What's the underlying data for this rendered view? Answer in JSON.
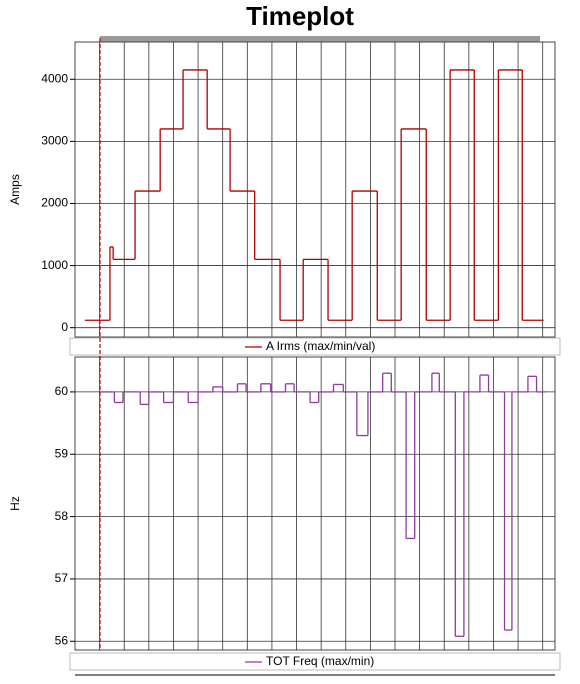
{
  "chart_data": [
    {
      "type": "line",
      "title": "Timeplot",
      "step": "post",
      "ylabel": "Amps",
      "xlim": [
        0,
        19.5
      ],
      "xticks": [
        1,
        2,
        3,
        4,
        5,
        6,
        7,
        8,
        9,
        10,
        11,
        12,
        13,
        14,
        15,
        16,
        17,
        18,
        19
      ],
      "ylim": [
        -150,
        4600
      ],
      "yticks": [
        0,
        1000,
        2000,
        3000,
        4000
      ],
      "grid": true,
      "series": [
        {
          "name": "A Irms (max/min/val)",
          "color": "#b00000",
          "x": [
            0.4,
            1.42,
            1.55,
            2.44,
            3.46,
            4.39,
            5.37,
            6.3,
            7.3,
            8.33,
            9.27,
            10.28,
            11.26,
            12.28,
            13.25,
            14.27,
            15.24,
            16.22,
            17.2,
            18.17,
            19.02
          ],
          "values": [
            120,
            1300,
            1100,
            2200,
            3200,
            4150,
            3200,
            2200,
            1100,
            120,
            1100,
            120,
            2200,
            120,
            3200,
            120,
            4150,
            120,
            4150,
            120,
            120
          ]
        }
      ]
    },
    {
      "type": "line",
      "step": "post",
      "ylabel": "Hz",
      "xlim": [
        0,
        19.5
      ],
      "xticks": [
        1,
        2,
        3,
        4,
        5,
        6,
        7,
        8,
        9,
        10,
        11,
        12,
        13,
        14,
        15,
        16,
        17,
        18,
        19
      ],
      "ylim": [
        55.86,
        60.56
      ],
      "yticks": [
        56,
        57,
        58,
        59,
        60
      ],
      "grid": true,
      "series": [
        {
          "name": "TOT Freq (max/min)",
          "color": "#8e3a9e",
          "x": [
            1.0,
            1.6,
            1.95,
            2.65,
            3.0,
            3.6,
            4.0,
            4.6,
            5.0,
            5.6,
            6.0,
            6.6,
            6.95,
            7.55,
            7.95,
            8.55,
            8.9,
            9.55,
            9.9,
            10.5,
            10.9,
            11.45,
            11.9,
            12.5,
            12.85,
            13.45,
            13.8,
            14.5,
            14.8,
            15.45,
            15.8,
            16.45,
            16.8,
            17.45,
            17.75,
            18.4,
            18.75,
            19.1
          ],
          "values": [
            60,
            59.83,
            60,
            59.8,
            60,
            59.83,
            60,
            59.83,
            60,
            60.08,
            60,
            60.13,
            60,
            60.13,
            60,
            60.13,
            60,
            59.83,
            60,
            60.12,
            60,
            59.3,
            60,
            60.3,
            60,
            57.65,
            60,
            60.3,
            60,
            56.08,
            60,
            60.27,
            60,
            56.18,
            60,
            60.25,
            60,
            60
          ]
        }
      ]
    }
  ]
}
